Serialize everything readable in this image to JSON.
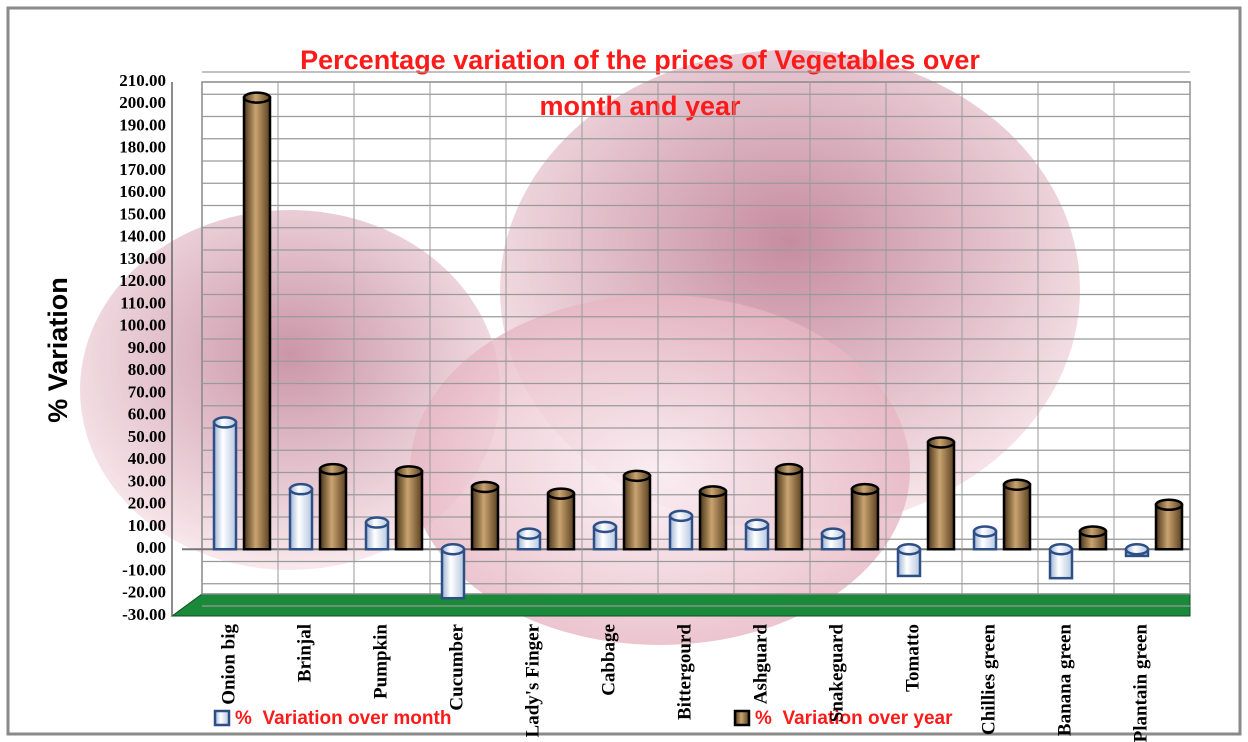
{
  "chart_data": {
    "type": "bar",
    "title": "Percentage variation of the prices of Vegetables over month and year",
    "y_label": "% Variation",
    "categories": [
      "Onion big",
      "Brinjal",
      "Pumpkin",
      "Cucumber",
      "Lady's Finger",
      "Cabbage",
      "Bittergourd",
      "Ashguard",
      "Snakeguard",
      "Tomatto",
      "Chillies green",
      "Banana green",
      "Plantain green"
    ],
    "series": [
      {
        "name": "%  Variation over month",
        "color": "#dce6f2",
        "values": [
          57,
          27,
          12,
          -22,
          7,
          10,
          15,
          11,
          7,
          -12,
          8,
          -13,
          -3
        ]
      },
      {
        "name": "%  Variation over year",
        "color": "#8b6a3e",
        "values": [
          203,
          36,
          35,
          28,
          25,
          33,
          26,
          36,
          27,
          48,
          29,
          8,
          20
        ]
      }
    ],
    "ylim": [
      -30,
      210
    ],
    "yticks": [
      {
        "value": -30,
        "label": "-30.00"
      },
      {
        "value": -20,
        "label": "-20.00"
      },
      {
        "value": -10,
        "label": "-10.00"
      },
      {
        "value": 0,
        "label": "0.00"
      },
      {
        "value": 10,
        "label": "10.00"
      },
      {
        "value": 20,
        "label": "20.00"
      },
      {
        "value": 30,
        "label": "30.00"
      },
      {
        "value": 40,
        "label": "40.00"
      },
      {
        "value": 50,
        "label": "50.00"
      },
      {
        "value": 60,
        "label": "60.00"
      },
      {
        "value": 70,
        "label": "70.00"
      },
      {
        "value": 80,
        "label": "80.00"
      },
      {
        "value": 90,
        "label": "90.00"
      },
      {
        "value": 100,
        "label": "100.00"
      },
      {
        "value": 110,
        "label": "110.00"
      },
      {
        "value": 120,
        "label": "120.00"
      },
      {
        "value": 130,
        "label": "130.00"
      },
      {
        "value": 140,
        "label": "140.00"
      },
      {
        "value": 150,
        "label": "150.00"
      },
      {
        "value": 160,
        "label": "160.00"
      },
      {
        "value": 170,
        "label": "170.00"
      },
      {
        "value": 180,
        "label": "180.00"
      },
      {
        "value": 190,
        "label": "190.00"
      },
      {
        "value": 200,
        "label": "200.00"
      },
      {
        "value": 210,
        "label": "210.00"
      }
    ],
    "grid": true
  }
}
